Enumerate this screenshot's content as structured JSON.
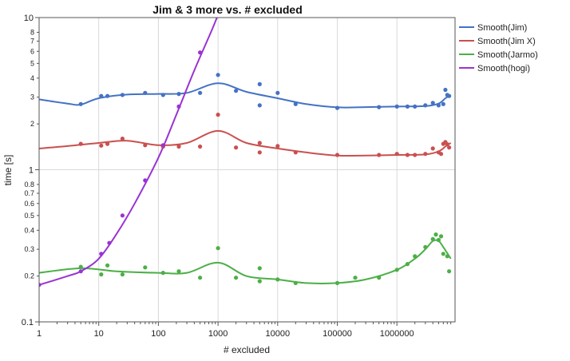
{
  "chart_data": {
    "type": "scatter",
    "title": "Jim & 3 more vs. # excluded",
    "xlabel": "# excluded",
    "ylabel": "time [s]",
    "x_scale": "log",
    "y_scale": "log",
    "xlim": [
      1,
      8000000
    ],
    "ylim": [
      0.1,
      10
    ],
    "grid": true,
    "legend_position": "right",
    "x_ticks": [
      {
        "v": 1,
        "label": "1"
      },
      {
        "v": 10,
        "label": "10"
      },
      {
        "v": 100,
        "label": "100"
      },
      {
        "v": 1000,
        "label": "1000"
      },
      {
        "v": 10000,
        "label": "10000"
      },
      {
        "v": 100000,
        "label": "100000"
      },
      {
        "v": 1000000,
        "label": "1000000"
      }
    ],
    "y_major_ticks": [
      {
        "v": 0.1,
        "label": "0.1"
      },
      {
        "v": 1,
        "label": "1"
      },
      {
        "v": 10,
        "label": "10"
      }
    ],
    "y_minor_ticks": [
      {
        "v": 0.2,
        "label": "0.2"
      },
      {
        "v": 0.3,
        "label": "0.3"
      },
      {
        "v": 0.4,
        "label": "0.4"
      },
      {
        "v": 0.5,
        "label": "0.5"
      },
      {
        "v": 0.6,
        "label": "0.6"
      },
      {
        "v": 0.7,
        "label": "0.7"
      },
      {
        "v": 0.8,
        "label": "0.8"
      },
      {
        "v": 2,
        "label": "2"
      },
      {
        "v": 3,
        "label": "3"
      },
      {
        "v": 4,
        "label": "4"
      },
      {
        "v": 5,
        "label": "5"
      },
      {
        "v": 6,
        "label": "6"
      },
      {
        "v": 7,
        "label": "7"
      },
      {
        "v": 8,
        "label": "8"
      }
    ],
    "series": [
      {
        "name": "Smooth(Jim)",
        "color": "#4472C4",
        "points": [
          [
            5,
            2.7
          ],
          [
            11,
            3.05
          ],
          [
            14,
            3.05
          ],
          [
            25,
            3.1
          ],
          [
            60,
            3.2
          ],
          [
            120,
            3.1
          ],
          [
            220,
            3.15
          ],
          [
            500,
            3.2
          ],
          [
            1000,
            4.2
          ],
          [
            2000,
            3.3
          ],
          [
            5000,
            3.65
          ],
          [
            5000,
            2.65
          ],
          [
            10000,
            3.2
          ],
          [
            20000,
            2.7
          ],
          [
            100000,
            2.55
          ],
          [
            500000,
            2.58
          ],
          [
            1000000,
            2.6
          ],
          [
            1500000,
            2.6
          ],
          [
            2000000,
            2.6
          ],
          [
            3000000,
            2.65
          ],
          [
            4000000,
            2.75
          ],
          [
            5000000,
            2.65
          ],
          [
            6000000,
            2.7
          ],
          [
            6500000,
            3.35
          ],
          [
            7000000,
            3.1
          ],
          [
            7500000,
            3.05
          ]
        ],
        "curve": [
          [
            1,
            2.9
          ],
          [
            3,
            2.72
          ],
          [
            5,
            2.68
          ],
          [
            10,
            2.95
          ],
          [
            30,
            3.12
          ],
          [
            100,
            3.15
          ],
          [
            300,
            3.2
          ],
          [
            1000,
            3.7
          ],
          [
            3000,
            3.25
          ],
          [
            10000,
            2.95
          ],
          [
            30000,
            2.7
          ],
          [
            100000,
            2.57
          ],
          [
            300000,
            2.58
          ],
          [
            1000000,
            2.6
          ],
          [
            3000000,
            2.62
          ],
          [
            5000000,
            2.72
          ],
          [
            6500000,
            2.95
          ],
          [
            8000000,
            3.1
          ]
        ]
      },
      {
        "name": "Smooth(Jim X)",
        "color": "#C9504F",
        "points": [
          [
            5,
            1.48
          ],
          [
            11,
            1.44
          ],
          [
            14,
            1.48
          ],
          [
            25,
            1.6
          ],
          [
            60,
            1.45
          ],
          [
            120,
            1.42
          ],
          [
            220,
            1.42
          ],
          [
            500,
            1.42
          ],
          [
            1000,
            2.3
          ],
          [
            2000,
            1.4
          ],
          [
            5000,
            1.5
          ],
          [
            5000,
            1.3
          ],
          [
            10000,
            1.43
          ],
          [
            20000,
            1.3
          ],
          [
            100000,
            1.25
          ],
          [
            500000,
            1.25
          ],
          [
            1000000,
            1.27
          ],
          [
            1500000,
            1.25
          ],
          [
            2000000,
            1.25
          ],
          [
            3000000,
            1.27
          ],
          [
            4000000,
            1.38
          ],
          [
            5000000,
            1.3
          ],
          [
            5500000,
            1.27
          ],
          [
            6000000,
            1.48
          ],
          [
            6500000,
            1.52
          ],
          [
            7000000,
            1.47
          ],
          [
            7500000,
            1.4
          ]
        ],
        "curve": [
          [
            1,
            1.38
          ],
          [
            3,
            1.43
          ],
          [
            10,
            1.5
          ],
          [
            30,
            1.55
          ],
          [
            100,
            1.45
          ],
          [
            300,
            1.5
          ],
          [
            1000,
            1.8
          ],
          [
            3000,
            1.5
          ],
          [
            10000,
            1.38
          ],
          [
            30000,
            1.3
          ],
          [
            100000,
            1.24
          ],
          [
            300000,
            1.24
          ],
          [
            1000000,
            1.25
          ],
          [
            3000000,
            1.26
          ],
          [
            5000000,
            1.32
          ],
          [
            6500000,
            1.42
          ],
          [
            8000000,
            1.5
          ]
        ]
      },
      {
        "name": "Smooth(Jarmo)",
        "color": "#4CAF47",
        "points": [
          [
            5,
            0.23
          ],
          [
            11,
            0.205
          ],
          [
            14,
            0.235
          ],
          [
            25,
            0.205
          ],
          [
            60,
            0.228
          ],
          [
            120,
            0.21
          ],
          [
            220,
            0.215
          ],
          [
            500,
            0.195
          ],
          [
            1000,
            0.305
          ],
          [
            2000,
            0.195
          ],
          [
            5000,
            0.225
          ],
          [
            5000,
            0.185
          ],
          [
            10000,
            0.19
          ],
          [
            20000,
            0.18
          ],
          [
            100000,
            0.18
          ],
          [
            200000,
            0.195
          ],
          [
            500000,
            0.195
          ],
          [
            1000000,
            0.22
          ],
          [
            1500000,
            0.24
          ],
          [
            2000000,
            0.27
          ],
          [
            3000000,
            0.31
          ],
          [
            4000000,
            0.35
          ],
          [
            4500000,
            0.375
          ],
          [
            5000000,
            0.345
          ],
          [
            5500000,
            0.365
          ],
          [
            6000000,
            0.28
          ],
          [
            7000000,
            0.27
          ],
          [
            7500000,
            0.215
          ]
        ],
        "curve": [
          [
            1,
            0.21
          ],
          [
            5,
            0.225
          ],
          [
            20,
            0.215
          ],
          [
            100,
            0.21
          ],
          [
            300,
            0.21
          ],
          [
            1000,
            0.245
          ],
          [
            3000,
            0.2
          ],
          [
            10000,
            0.19
          ],
          [
            30000,
            0.18
          ],
          [
            100000,
            0.18
          ],
          [
            300000,
            0.19
          ],
          [
            1000000,
            0.22
          ],
          [
            2000000,
            0.26
          ],
          [
            3000000,
            0.3
          ],
          [
            4000000,
            0.34
          ],
          [
            5000000,
            0.34
          ],
          [
            6000000,
            0.31
          ],
          [
            8000000,
            0.26
          ]
        ]
      },
      {
        "name": "Smooth(hogi)",
        "color": "#9A32D3",
        "points": [
          [
            1,
            0.175
          ],
          [
            5,
            0.215
          ],
          [
            11,
            0.28
          ],
          [
            15,
            0.33
          ],
          [
            25,
            0.5
          ],
          [
            60,
            0.85
          ],
          [
            120,
            1.45
          ],
          [
            220,
            2.6
          ],
          [
            500,
            5.9
          ]
        ],
        "curve": [
          [
            1,
            0.175
          ],
          [
            3,
            0.2
          ],
          [
            5,
            0.215
          ],
          [
            10,
            0.26
          ],
          [
            20,
            0.38
          ],
          [
            40,
            0.6
          ],
          [
            100,
            1.2
          ],
          [
            200,
            2.3
          ],
          [
            400,
            4.5
          ],
          [
            800,
            8.4
          ],
          [
            1200,
            12.5
          ]
        ]
      }
    ]
  }
}
